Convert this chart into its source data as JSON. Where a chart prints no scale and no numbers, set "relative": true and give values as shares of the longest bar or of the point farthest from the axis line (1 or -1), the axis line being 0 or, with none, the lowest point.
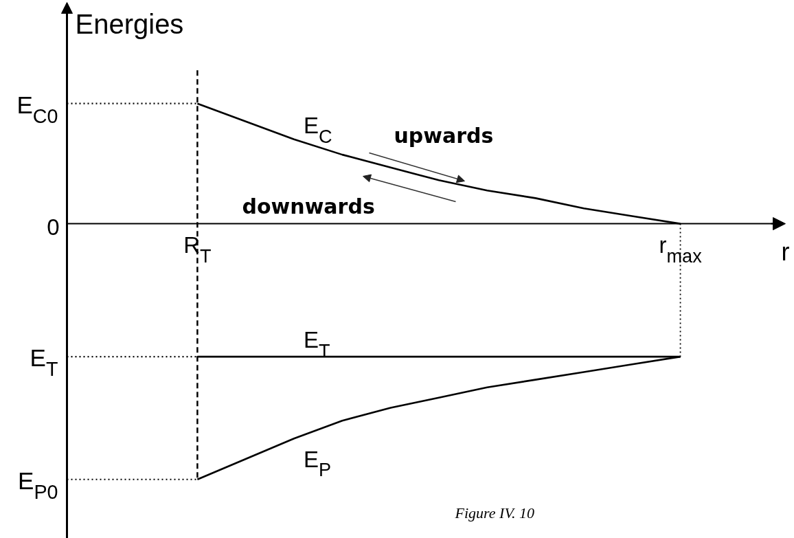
{
  "chart_data": {
    "type": "line",
    "relative": true,
    "ylabel": "Energies",
    "xlabel": "r",
    "line_style": "solid",
    "categories": [
      "R$_{T}$",
      null,
      null,
      null,
      null,
      null,
      null,
      null,
      null,
      null,
      "r$_{max}$"
    ],
    "series": [
      {
        "name": "E$_{C}$",
        "color": "#000000",
        "values": [
          0.47,
          0.4,
          0.33,
          0.27,
          0.22,
          0.17,
          0.13,
          0.1,
          0.06,
          0.03,
          0
        ]
      },
      {
        "name": "E$_{T}$",
        "color": "#000000",
        "values": [
          -0.52,
          -0.52,
          -0.52,
          -0.52,
          -0.52,
          -0.52,
          -0.52,
          -0.52,
          -0.52,
          -0.52,
          -0.52
        ]
      },
      {
        "name": "E$_{P}$",
        "color": "#000000",
        "values": [
          -1,
          -0.92,
          -0.84,
          -0.77,
          -0.72,
          -0.68,
          -0.64,
          -0.61,
          -0.58,
          -0.55,
          -0.52
        ]
      },
      {
        "type": "line",
        "line_style": "dashed",
        "color": "#000000",
        "x": [
          "R$_{T}$",
          "R$_{T}$"
        ],
        "values": [
          0.6,
          -1
        ]
      },
      {
        "type": "line",
        "line_style": "dotted",
        "color": "#000000",
        "x": [
          "r$_{max}$",
          "r$_{max}$"
        ],
        "values": [
          0,
          -0.52
        ]
      }
    ],
    "ref_lines": [
      {
        "axis": "y",
        "value": 0.47,
        "label": "E$_{C0}$",
        "line_style": "dotted",
        "color": "#000000"
      },
      {
        "axis": "y",
        "value": -0.52,
        "label": "E$_{T}$",
        "line_style": "dotted",
        "color": "#000000"
      },
      {
        "axis": "y",
        "value": -1,
        "label": "E$_{P0}$",
        "line_style": "dotted",
        "color": "#000000"
      }
    ],
    "annotations": [
      "0",
      "upwards",
      "downwards",
      "Figure IV. 10"
    ]
  }
}
